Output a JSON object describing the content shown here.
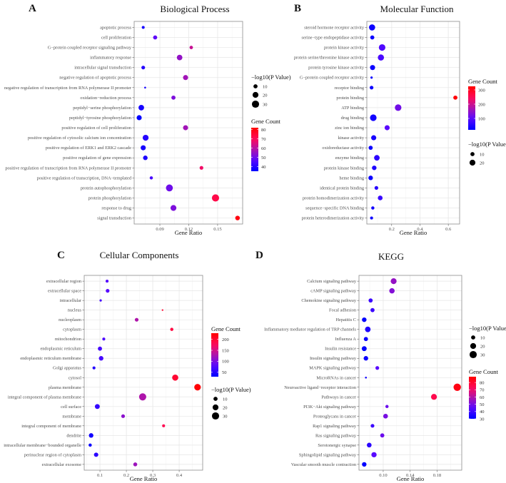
{
  "chart_data": [
    {
      "type": "scatter",
      "panel": "A",
      "title": "Biological Process",
      "xlabel": "Gene Ratio",
      "xticks": [
        0.09,
        0.12,
        0.15
      ],
      "xtick_labels": [
        "0.09",
        "0.12",
        "0.15"
      ],
      "xlim": [
        0.0633,
        0.176
      ],
      "size_legend": {
        "title": "−log10(P Value)",
        "values": [
          10,
          20,
          30
        ],
        "labels": [
          "10",
          "20",
          "30"
        ]
      },
      "color_legend": {
        "title": "Gene Count",
        "range": [
          35,
          82
        ],
        "ticks": [
          40,
          50,
          60,
          70,
          80
        ],
        "labels": [
          "40",
          "50",
          "60",
          "70",
          "80"
        ],
        "low": "#0000ff",
        "high": "#ff0000"
      },
      "terms": [
        "apoptotic process",
        "cell proliferation",
        "G−protein coupled receptor signaling pathway",
        "inflammatory response",
        "intracellular signal transduction",
        "negative regulation of apoptotic process",
        "negative regulation of transcription from RNA polymerase II promoter",
        "oxidation−reduction process",
        "peptidyl−serine phosphorylation",
        "peptidyl−tyrosine phosphorylation",
        "positive regulation of cell proliferation",
        "positive regulation of cytosolic calcium ion concentration",
        "positive regulation of ERK1 and ERK2 cascade",
        "positive regulation of gene expression",
        "positive regulation of transcription from RNA polymerase II promoter",
        "positive regulation of transcription, DNA−templated",
        "protein autophosphorylation",
        "protein phosphorylation",
        "response to drug",
        "signal transduction"
      ],
      "gene_ratio": [
        0.0727,
        0.0851,
        0.1226,
        0.1105,
        0.0727,
        0.1167,
        0.0747,
        0.1041,
        0.0707,
        0.0685,
        0.1167,
        0.0752,
        0.0727,
        0.0749,
        0.1332,
        0.0811,
        0.0999,
        0.1478,
        0.1041,
        0.1707
      ],
      "gene_count": [
        38,
        48,
        62,
        55,
        40,
        57,
        38,
        52,
        38,
        35,
        57,
        40,
        38,
        39,
        68,
        45,
        50,
        72,
        52,
        80
      ],
      "neg_log10_p": [
        5,
        10,
        7,
        18,
        8,
        15,
        2,
        10,
        18,
        15,
        15,
        20,
        15,
        12,
        8,
        6,
        28,
        30,
        20,
        12
      ]
    },
    {
      "type": "scatter",
      "panel": "B",
      "title": "Molecular Function",
      "xlabel": "Gene Ratio",
      "xticks": [
        0.2,
        0.4,
        0.6
      ],
      "xtick_labels": [
        "0.2",
        "0.4",
        "0.6"
      ],
      "xlim": [
        0.0245,
        0.68
      ],
      "size_legend": {
        "title": "−log10(P Value)",
        "values": [
          10,
          20
        ],
        "labels": [
          "10",
          "20"
        ]
      },
      "color_legend": {
        "title": "Gene Count",
        "range": [
          20,
          325
        ],
        "ticks": [
          100,
          200,
          300
        ],
        "labels": [
          "100",
          "200",
          "300"
        ],
        "low": "#0000ff",
        "high": "#ff0000"
      },
      "terms": [
        "steroid hormone receptor activity",
        "serine−type endopeptidase activity",
        "protein kinase activity",
        "protein serine/threonine kinase activity",
        "protein tyrosine kinase activity",
        "G−protein coupled receptor activity",
        "receptor binding",
        "protein binding",
        "ATP binding",
        "drug binding",
        "zinc ion binding",
        "kinase activity",
        "oxidoreductase activity",
        "enzyme binding",
        "protein kinase binding",
        "heme binding",
        "identical protein binding",
        "protein homodimerization activity",
        "sequence−specific DNA binding",
        "protein heterodimerization activity"
      ],
      "gene_ratio": [
        0.0616,
        0.063,
        0.1325,
        0.124,
        0.065,
        0.058,
        0.058,
        0.65,
        0.2456,
        0.07,
        0.168,
        0.073,
        0.0515,
        0.0954,
        0.0768,
        0.0515,
        0.092,
        0.119,
        0.0667,
        0.058
      ],
      "gene_count": [
        30,
        30,
        90,
        85,
        30,
        25,
        30,
        320,
        120,
        35,
        100,
        40,
        30,
        60,
        45,
        30,
        55,
        70,
        35,
        30
      ],
      "neg_log10_p": [
        22,
        10,
        25,
        22,
        15,
        3,
        8,
        10,
        25,
        25,
        15,
        15,
        10,
        18,
        12,
        12,
        8,
        13,
        6,
        5
      ]
    },
    {
      "type": "scatter",
      "panel": "C",
      "title": "Cellular Components",
      "xlabel": "Gene Ratio",
      "xticks": [
        0.1,
        0.2,
        0.3,
        0.4
      ],
      "xtick_labels": [
        "0.1",
        "0.2",
        "0.3",
        "0.4"
      ],
      "xlim": [
        0.0404,
        0.489
      ],
      "size_legend": {
        "title": "−log10(P Value)",
        "values": [
          10,
          20,
          30
        ],
        "labels": [
          "10",
          "20",
          "30"
        ]
      },
      "color_legend": {
        "title": "Gene Count",
        "range": [
          30,
          228
        ],
        "ticks": [
          50,
          100,
          150,
          200
        ],
        "labels": [
          "50",
          "100",
          "150",
          "200"
        ],
        "low": "#0000ff",
        "high": "#ff0000"
      },
      "terms": [
        "extracellular region",
        "extracellular space",
        "intracellular",
        "nucleus",
        "nucleoplasm",
        "cytoplasm",
        "mitochondrion",
        "endoplasmic reticulum",
        "endoplasmic reticulum membrane",
        "Golgi apparatus",
        "cytosol",
        "plasma membrane",
        "integral component of plasma membrane",
        "cell surface",
        "membrane",
        "integral component of membrane",
        "dendrite",
        "intracellular membrane−bounded organelle",
        "perinuclear region of cytoplasm",
        "extracellular exosome"
      ],
      "gene_ratio": [
        0.127,
        0.129,
        0.1027,
        0.337,
        0.239,
        0.372,
        0.1145,
        0.1,
        0.1045,
        0.0774,
        0.385,
        0.4695,
        0.2617,
        0.09,
        0.1876,
        0.341,
        0.0666,
        0.063,
        0.0855,
        0.2337
      ],
      "gene_count": [
        80,
        80,
        70,
        200,
        130,
        190,
        75,
        70,
        70,
        50,
        200,
        225,
        130,
        60,
        110,
        180,
        40,
        35,
        55,
        120
      ],
      "neg_log10_p": [
        5,
        8,
        3,
        1.5,
        8,
        6,
        5,
        10,
        12,
        5,
        22,
        25,
        30,
        14,
        8,
        5,
        12,
        6,
        11,
        9
      ]
    },
    {
      "type": "scatter",
      "panel": "D",
      "title": "KEGG",
      "xlabel": "Gene Ratio",
      "xticks": [
        0.1,
        0.14,
        0.18
      ],
      "xtick_labels": [
        "0.10",
        "0.14",
        "0.18"
      ],
      "xlim": [
        0.064,
        0.2167
      ],
      "size_legend": {
        "title": "−log10(P Value)",
        "values": [
          10,
          20,
          30
        ],
        "labels": [
          "10",
          "20",
          "30"
        ]
      },
      "color_legend": {
        "title": "Gene Count",
        "range": [
          30,
          88
        ],
        "ticks": [
          30,
          40,
          50,
          60,
          70,
          80
        ],
        "labels": [
          "30",
          "40",
          "50",
          "60",
          "70",
          "80"
        ],
        "low": "#0000ff",
        "high": "#ff0000"
      },
      "terms": [
        "Calcium signaling pathway",
        "cAMP signaling pathway",
        "Chemokine signaling pathway",
        "Focal adhesion",
        "Hepatitis C",
        "Inflammatory mediator regulation of TRP channels",
        "Influenza A",
        "Insulin resistance",
        "Insulin signaling pathway",
        "MAPK signaling pathway",
        "MicroRNAs in cancer",
        "Neuroactive ligand−receptor interaction",
        "Pathways in cancer",
        "PI3K−Akt signaling pathway",
        "Proteoglycans in cancer",
        "Rap1 signaling pathway",
        "Ras signaling pathway",
        "Serotonergic synapse",
        "Sphingolipid signaling pathway",
        "Vascular smooth muscle contraction"
      ],
      "gene_ratio": [
        0.1155,
        0.113,
        0.0813,
        0.0841,
        0.0718,
        0.0771,
        0.0743,
        0.0718,
        0.0743,
        0.0912,
        0.0743,
        0.21,
        0.1754,
        0.1056,
        0.1035,
        0.0841,
        0.0986,
        0.0792,
        0.0863,
        0.0718
      ],
      "gene_count": [
        55,
        52,
        40,
        40,
        30,
        35,
        32,
        30,
        32,
        45,
        33,
        85,
        75,
        48,
        50,
        40,
        48,
        37,
        45,
        30
      ],
      "neg_log10_p": [
        20,
        17,
        10,
        10,
        12,
        18,
        10,
        14,
        12,
        8,
        2,
        32,
        20,
        6,
        13,
        8,
        10,
        13,
        16,
        12
      ]
    }
  ]
}
